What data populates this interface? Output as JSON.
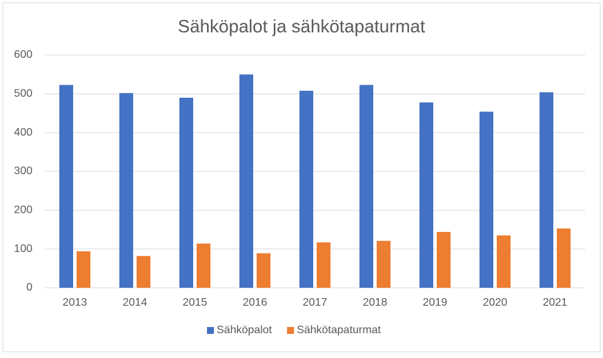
{
  "chart_data": {
    "type": "bar",
    "title": "Sähköpalot ja sähkötapaturmat",
    "categories": [
      "2013",
      "2014",
      "2015",
      "2016",
      "2017",
      "2018",
      "2019",
      "2020",
      "2021"
    ],
    "series": [
      {
        "name": "Sähköpalot",
        "color": "#4472c4",
        "values": [
          523,
          502,
          490,
          550,
          508,
          523,
          478,
          454,
          504
        ]
      },
      {
        "name": "Sähkötapaturmat",
        "color": "#ed7d31",
        "values": [
          94,
          82,
          114,
          89,
          117,
          121,
          144,
          135,
          153
        ]
      }
    ],
    "ylim": [
      0,
      600
    ],
    "yticks": [
      0,
      100,
      200,
      300,
      400,
      500,
      600
    ],
    "grid": true,
    "legend": "bottom"
  }
}
